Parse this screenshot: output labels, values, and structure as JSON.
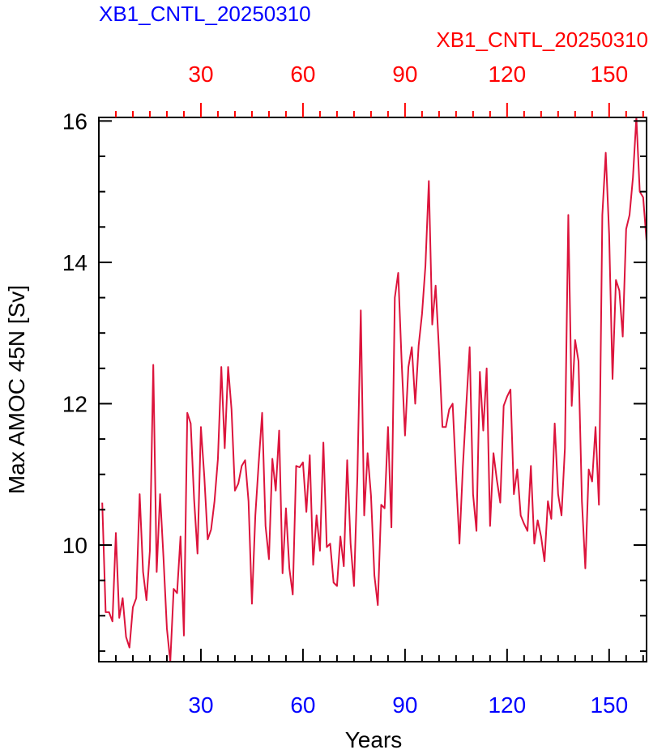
{
  "chart_data": {
    "type": "line",
    "titles": {
      "left": "XB1_CNTL_20250310",
      "right": "XB1_CNTL_20250310"
    },
    "xlabel": "Years",
    "ylabel": "Max AMOC 45N [Sv]",
    "xlim": [
      0,
      161
    ],
    "ylim": [
      8.35,
      16.05
    ],
    "xticks_bottom": [
      30,
      60,
      90,
      120,
      150
    ],
    "xticks_top": [
      30,
      60,
      90,
      120,
      150
    ],
    "yticks": [
      10,
      12,
      14,
      16
    ],
    "colors": {
      "bottom_axis": "#0000ff",
      "top_axis": "#ff0000",
      "left_title": "#0000ff",
      "right_title": "#ff0000",
      "line": "#dc143c"
    },
    "series": [
      {
        "values": [
          10.6,
          9.05,
          9.05,
          8.92,
          10.17,
          8.97,
          9.25,
          8.7,
          8.55,
          9.12,
          9.25,
          10.72,
          9.62,
          9.22,
          9.92,
          12.55,
          9.62,
          10.72,
          9.82,
          8.82,
          8.35,
          9.38,
          9.32,
          10.12,
          8.72,
          11.87,
          11.72,
          10.65,
          9.88,
          11.67,
          10.97,
          10.08,
          10.22,
          10.62,
          11.22,
          12.52,
          11.37,
          12.52,
          11.92,
          10.77,
          10.87,
          11.12,
          11.2,
          10.62,
          9.17,
          10.42,
          11.17,
          11.87,
          10.27,
          9.8,
          11.22,
          10.77,
          11.62,
          9.6,
          10.52,
          9.67,
          9.3,
          11.12,
          11.1,
          11.17,
          10.47,
          11.27,
          9.72,
          10.42,
          9.92,
          11.45,
          9.97,
          10.02,
          9.47,
          9.42,
          10.12,
          9.7,
          11.2,
          10.02,
          9.42,
          10.97,
          13.32,
          10.42,
          11.3,
          10.7,
          9.57,
          9.15,
          10.57,
          10.52,
          11.67,
          10.25,
          13.5,
          13.85,
          12.6,
          11.55,
          12.52,
          12.8,
          12.0,
          12.82,
          13.27,
          13.95,
          15.15,
          13.12,
          13.67,
          12.75,
          11.67,
          11.67,
          11.92,
          12.0,
          10.97,
          10.02,
          11.1,
          11.97,
          12.8,
          10.72,
          10.2,
          12.45,
          11.62,
          12.5,
          10.27,
          11.3,
          10.92,
          10.6,
          11.97,
          12.1,
          12.2,
          10.72,
          11.07,
          10.42,
          10.3,
          10.2,
          11.12,
          10.02,
          10.35,
          10.12,
          9.77,
          10.62,
          10.37,
          11.72,
          10.72,
          10.42,
          11.37,
          14.67,
          11.97,
          12.9,
          12.6,
          10.62,
          9.67,
          11.07,
          10.9,
          11.67,
          10.57,
          14.67,
          15.55,
          14.4,
          12.35,
          13.75,
          13.6,
          12.95,
          14.47,
          14.67,
          15.2,
          16.05,
          15.0,
          14.92,
          14.3
        ]
      }
    ]
  }
}
